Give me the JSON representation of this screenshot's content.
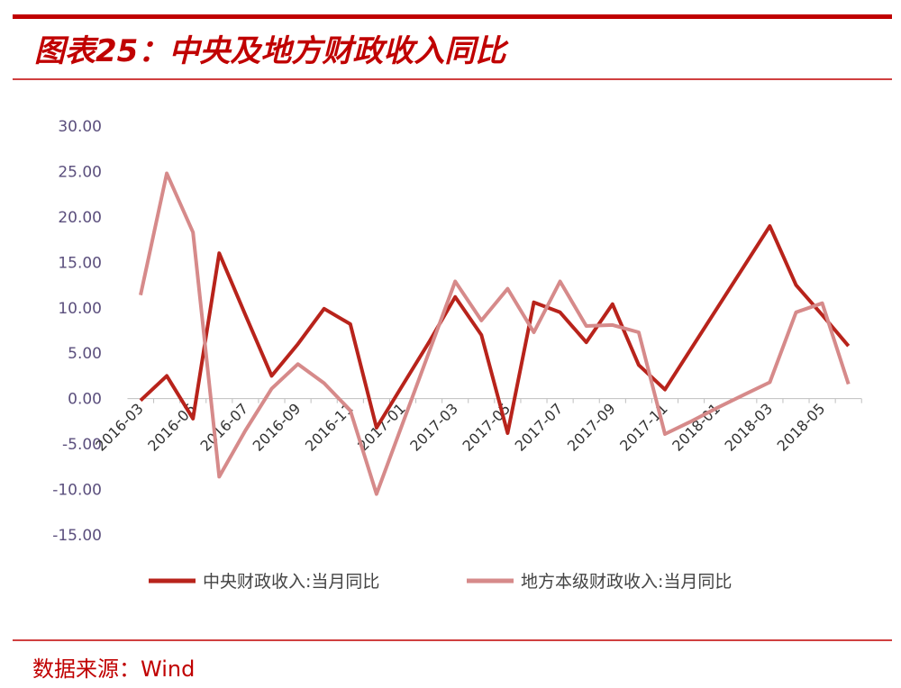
{
  "chart_data": {
    "type": "line",
    "title": "图表25：中央及地方财政收入同比",
    "source": "数据来源：Wind",
    "categories": [
      "2016-03",
      null,
      "2016-05",
      null,
      "2016-07",
      null,
      "2016-09",
      null,
      "2016-11",
      null,
      "2017-01",
      null,
      "2017-03",
      null,
      "2017-05",
      null,
      "2017-07",
      null,
      "2017-09",
      null,
      "2017-11",
      null,
      "2018-01",
      null,
      "2018-03",
      null,
      "2018-05",
      null
    ],
    "series": [
      {
        "name": "中央财政收入:当月同比",
        "color": "#b8231b",
        "values": [
          -0.2,
          2.5,
          -2.2,
          16.0,
          9.2,
          2.5,
          6.0,
          9.9,
          8.2,
          -3.2,
          1.5,
          6.2,
          11.2,
          7.0,
          -3.8,
          10.6,
          9.5,
          6.2,
          10.4,
          3.7,
          1.0,
          5.5,
          10.0,
          14.5,
          19.0,
          12.5,
          9.2,
          5.8
        ]
      },
      {
        "name": "地方本级财政收入:当月同比",
        "color": "#d68a8a",
        "values": [
          11.4,
          24.8,
          18.3,
          -8.6,
          -3.5,
          1.1,
          3.8,
          1.7,
          -1.3,
          -10.5,
          -2.7,
          5.1,
          12.9,
          8.6,
          12.1,
          7.3,
          12.9,
          8.0,
          8.1,
          7.3,
          -3.9,
          -2.5,
          -1.0,
          0.4,
          1.8,
          9.5,
          10.5,
          1.6
        ]
      }
    ],
    "ylim": [
      -15,
      30
    ],
    "yticks": [
      {
        "value": -15,
        "label": "-15.00"
      },
      {
        "value": -10,
        "label": "-10.00"
      },
      {
        "value": -5,
        "label": "-5.00"
      },
      {
        "value": 0,
        "label": "0.00"
      },
      {
        "value": 5,
        "label": "5.00"
      },
      {
        "value": 10,
        "label": "10.00"
      },
      {
        "value": 15,
        "label": "15.00"
      },
      {
        "value": 20,
        "label": "20.00"
      },
      {
        "value": 25,
        "label": "25.00"
      },
      {
        "value": 30,
        "label": "30.00"
      }
    ],
    "grid": false,
    "legend": "bottom"
  }
}
